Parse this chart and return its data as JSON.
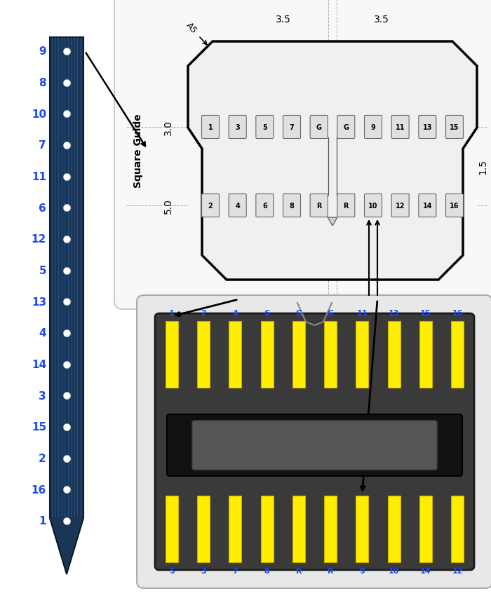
{
  "probe_labels": [
    "9",
    "8",
    "10",
    "7",
    "11",
    "6",
    "12",
    "5",
    "13",
    "4",
    "14",
    "3",
    "15",
    "2",
    "16",
    "1"
  ],
  "label_color": "#1a4aee",
  "probe_dark": "#1a3555",
  "probe_mid": "#1e4a70",
  "probe_stripe": "#2e6aaa",
  "top_row_labels": [
    "1",
    "3",
    "5",
    "7",
    "G",
    "G",
    "9",
    "11",
    "13",
    "15"
  ],
  "bottom_row_labels": [
    "2",
    "4",
    "6",
    "8",
    "R",
    "R",
    "10",
    "12",
    "14",
    "16"
  ],
  "connector_top_labels": [
    "1",
    "2",
    "4",
    "6",
    "G",
    "G",
    "11",
    "13",
    "15",
    "16"
  ],
  "connector_bottom_labels": [
    "5",
    "3",
    "7",
    "8",
    "R",
    "R",
    "9",
    "10",
    "14",
    "12"
  ],
  "pin_yellow": "#ffee00",
  "pin_border": "#ccaa00",
  "bg_white": "#ffffff",
  "sq_guide": "Square Guide",
  "dim_35l": "3.5",
  "dim_35r": "3.5",
  "dim_30": "3.0",
  "dim_50": "5.0",
  "dim_15": "1.5",
  "dim_a5": "A5"
}
